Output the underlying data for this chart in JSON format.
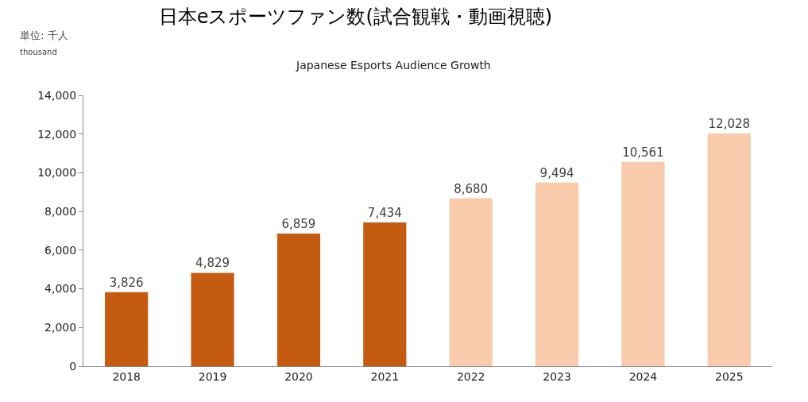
{
  "chart_data": {
    "type": "bar",
    "title": "日本eスポーツファン数(試合観戦・動画視聴)",
    "subtitle": "Japanese Esports Audience Growth",
    "annotations": [
      "単位: 千人",
      "thousand"
    ],
    "categories": [
      "2018",
      "2019",
      "2020",
      "2021",
      "2022",
      "2023",
      "2024",
      "2025"
    ],
    "values": [
      3826,
      4829,
      6859,
      7434,
      8680,
      9494,
      10561,
      12028
    ],
    "colors": [
      "#c55a11",
      "#c55a11",
      "#c55a11",
      "#c55a11",
      "#f8cbad",
      "#f8cbad",
      "#f8cbad",
      "#f8cbad"
    ],
    "value_labels": [
      "3,826",
      "4,829",
      "6,859",
      "7,434",
      "8,680",
      "9,494",
      "10,561",
      "12,028"
    ],
    "ylim": [
      0,
      14000
    ],
    "yticks": [
      {
        "value": 0,
        "label": "0"
      },
      {
        "value": 2000,
        "label": "2,000"
      },
      {
        "value": 4000,
        "label": "4,000"
      },
      {
        "value": 6000,
        "label": "6,000"
      },
      {
        "value": 8000,
        "label": "8,000"
      },
      {
        "value": 10000,
        "label": "10,000"
      },
      {
        "value": 12000,
        "label": "12,000"
      },
      {
        "value": 14000,
        "label": "14,000"
      }
    ],
    "grid": false
  }
}
